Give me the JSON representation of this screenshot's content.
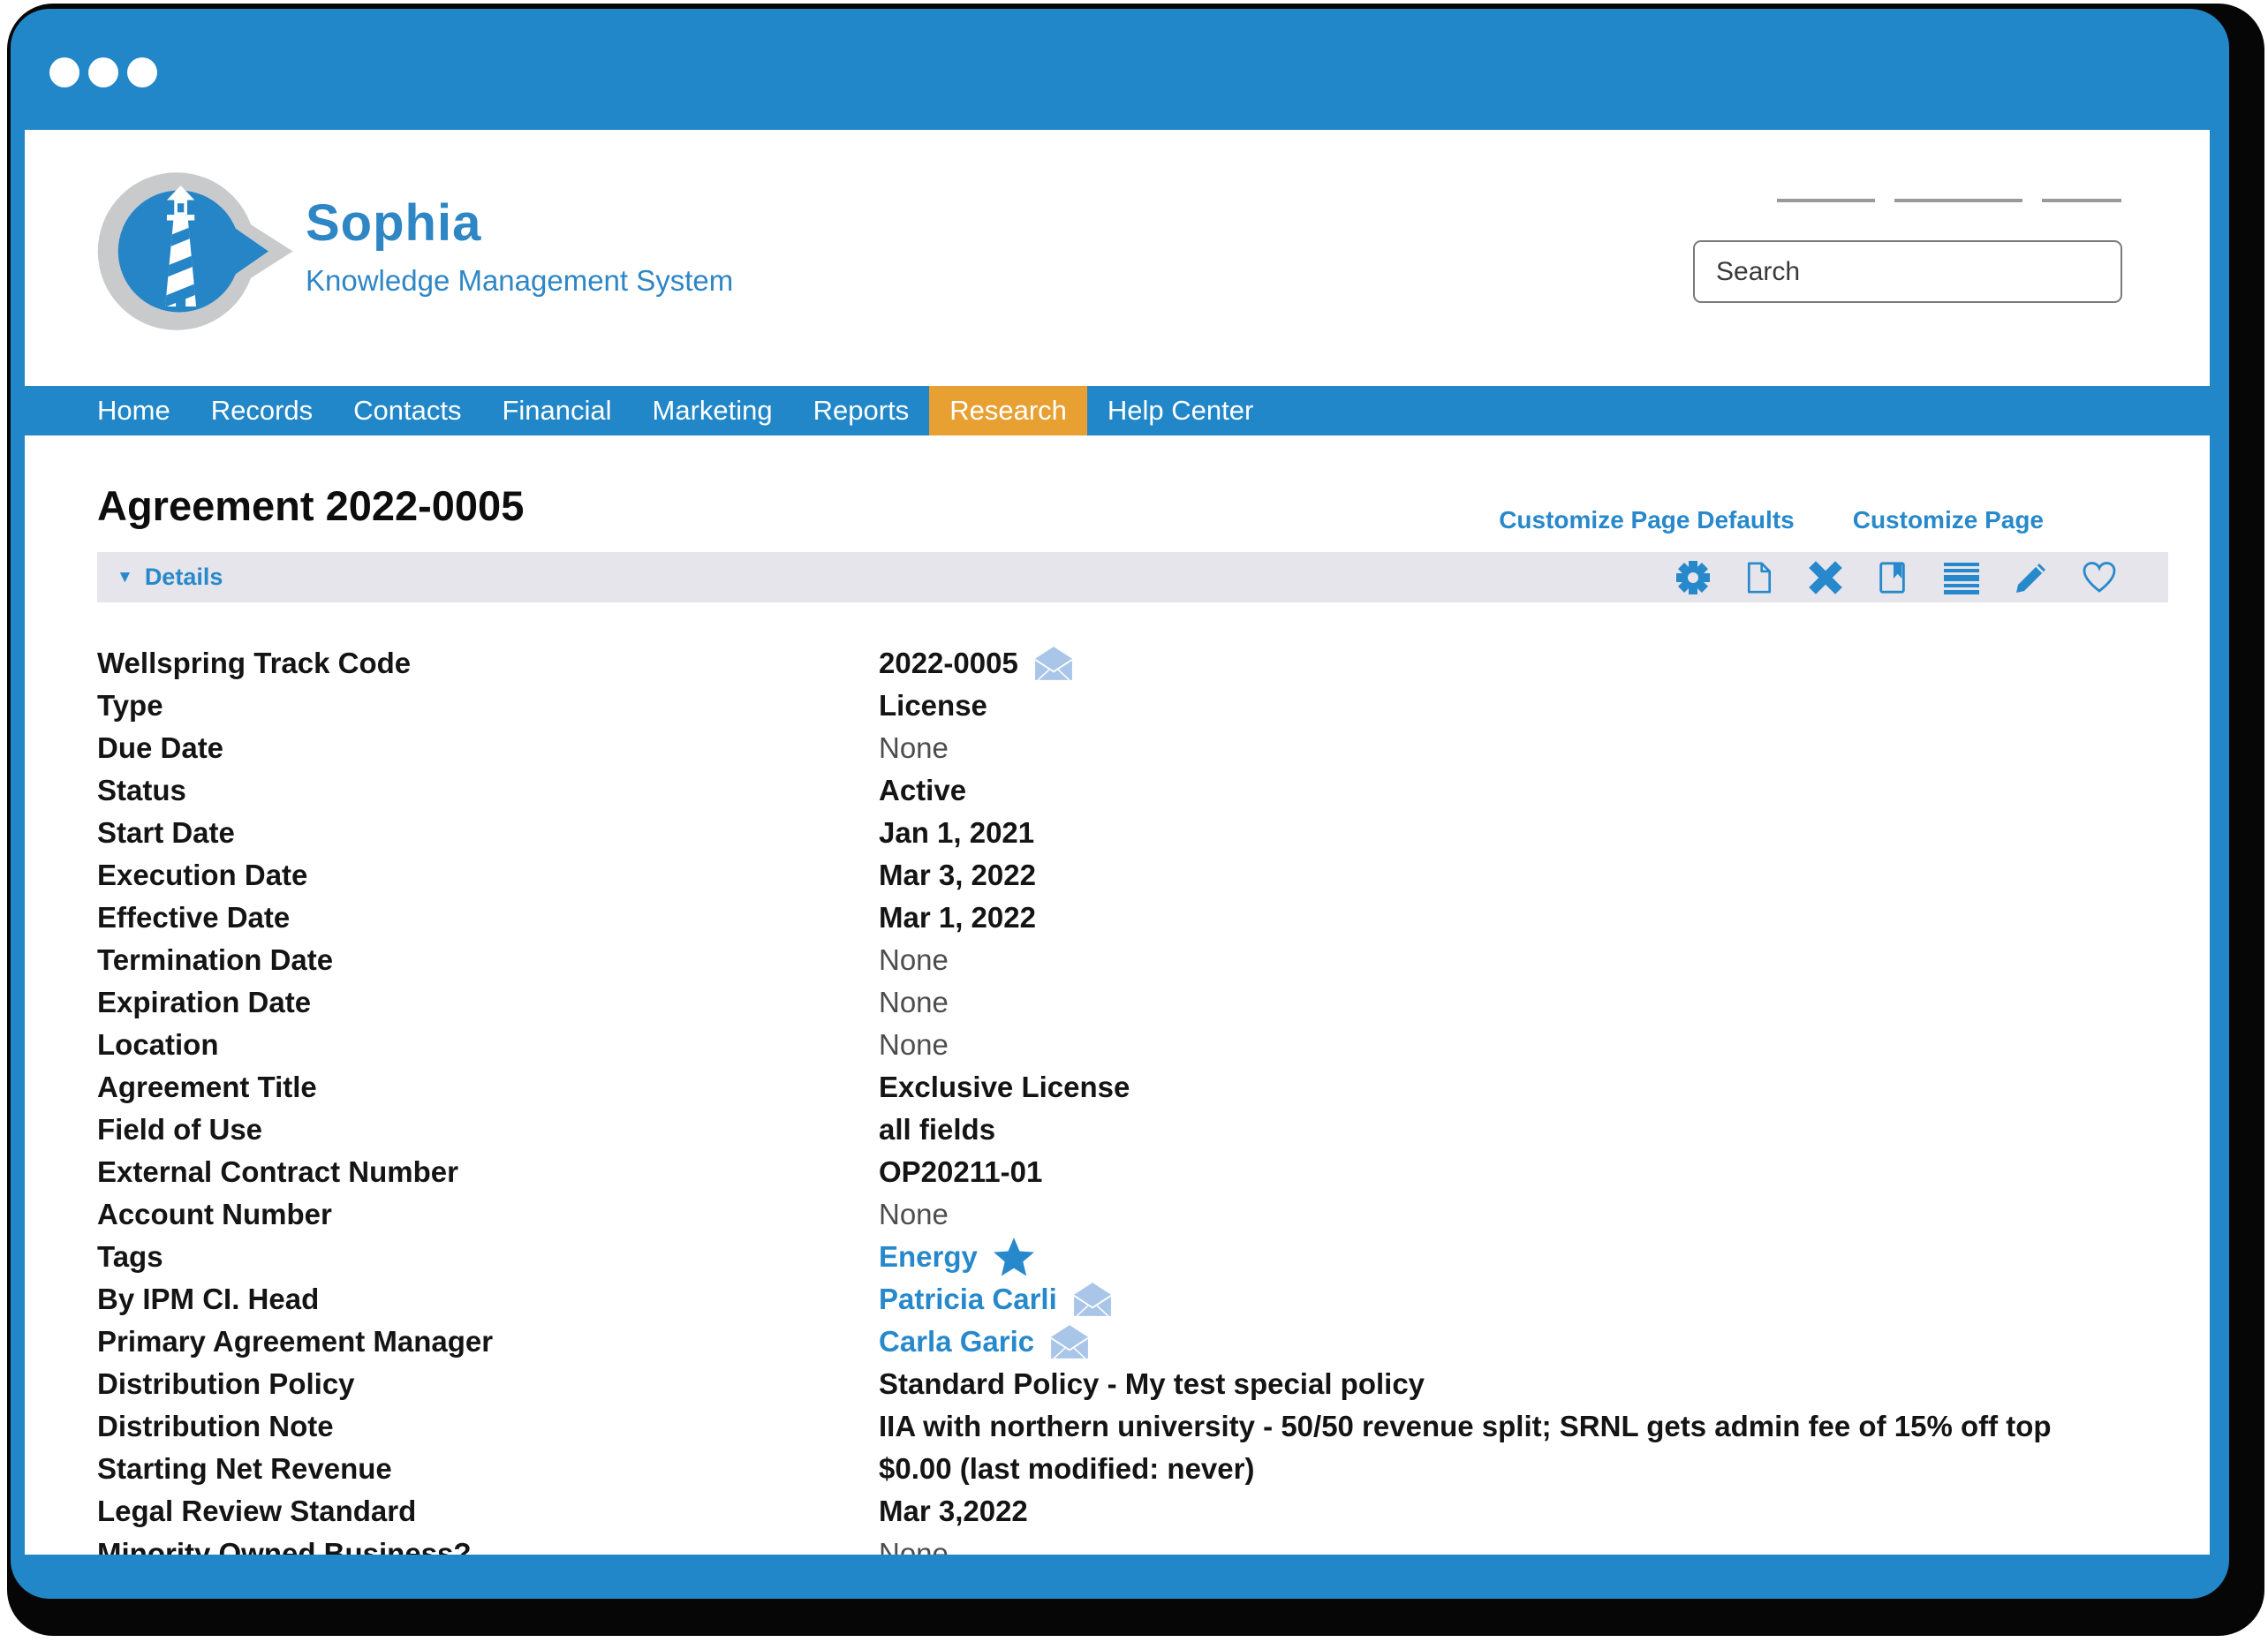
{
  "window": {
    "control_dots": 3
  },
  "brand": {
    "name": "Sophia",
    "tagline": "Knowledge Management System"
  },
  "header": {
    "placeholder_link_count": 3
  },
  "search": {
    "placeholder": "Search"
  },
  "nav": {
    "items": [
      {
        "label": "Home",
        "active": false
      },
      {
        "label": "Records",
        "active": false
      },
      {
        "label": "Contacts",
        "active": false
      },
      {
        "label": "Financial",
        "active": false
      },
      {
        "label": "Marketing",
        "active": false
      },
      {
        "label": "Reports",
        "active": false
      },
      {
        "label": "Research",
        "active": true
      },
      {
        "label": "Help Center",
        "active": false
      }
    ]
  },
  "page": {
    "title": "Agreement 2022-0005",
    "customize_defaults_label": "Customize Page Defaults",
    "customize_page_label": "Customize Page",
    "details": {
      "header": "Details",
      "toolbar_icons": [
        "gear",
        "document",
        "close",
        "book",
        "list",
        "pencil",
        "heart"
      ],
      "fields": [
        {
          "label": "Wellspring Track Code",
          "value": "2022-0005",
          "style": "plain",
          "icon": "envelope"
        },
        {
          "label": "Type",
          "value": "License",
          "style": "plain"
        },
        {
          "label": "Due Date",
          "value": "None",
          "style": "muted"
        },
        {
          "label": "Status",
          "value": "Active",
          "style": "plain"
        },
        {
          "label": "Start Date",
          "value": "Jan 1, 2021",
          "style": "plain"
        },
        {
          "label": "Execution Date",
          "value": "Mar 3, 2022",
          "style": "plain"
        },
        {
          "label": "Effective Date",
          "value": "Mar 1, 2022",
          "style": "plain"
        },
        {
          "label": "Termination Date",
          "value": "None",
          "style": "muted"
        },
        {
          "label": "Expiration Date",
          "value": "None",
          "style": "muted"
        },
        {
          "label": "Location",
          "value": "None",
          "style": "muted"
        },
        {
          "label": "Agreement Title",
          "value": "Exclusive License",
          "style": "plain"
        },
        {
          "label": "Field of Use",
          "value": "all fields",
          "style": "plain"
        },
        {
          "label": "External Contract Number",
          "value": "OP20211-01",
          "style": "plain"
        },
        {
          "label": "Account Number",
          "value": "None",
          "style": "muted"
        },
        {
          "label": "Tags",
          "value": "Energy",
          "style": "link",
          "icon": "star"
        },
        {
          "label": "By IPM CI. Head",
          "value": "Patricia Carli",
          "style": "link",
          "icon": "envelope"
        },
        {
          "label": "Primary Agreement Manager",
          "value": "Carla Garic",
          "style": "link",
          "icon": "envelope"
        },
        {
          "label": "Distribution Policy",
          "value": "Standard Policy - My test special policy",
          "style": "plain"
        },
        {
          "label": "Distribution Note",
          "value": "IIA with northern university - 50/50 revenue split; SRNL gets admin fee of 15% off top",
          "style": "plain"
        },
        {
          "label": "Starting Net Revenue",
          "value": "$0.00 (last modified: never)",
          "style": "plain"
        },
        {
          "label": "Legal Review Standard",
          "value": "Mar 3,2022",
          "style": "plain"
        },
        {
          "label": "Minority Owned Business?",
          "value": "None",
          "style": "muted"
        }
      ]
    }
  },
  "colors": {
    "frame_blue": "#2187C8",
    "brand_blue": "#2E86C5",
    "link_blue": "#2789CB",
    "active_tab_orange": "#E8A033",
    "details_bar_gray": "#E5E5EB",
    "envelope_blue": "#A9C5E8",
    "logo_gray": "#C8CACC"
  }
}
